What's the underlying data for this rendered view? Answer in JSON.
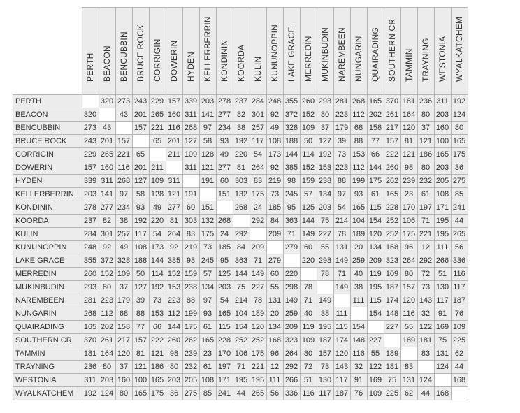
{
  "table": {
    "columns": [
      "PERTH",
      "BEACON",
      "BENCUBBIN",
      "BRUCE ROCK",
      "CORRIGIN",
      "DOWERIN",
      "HYDEN",
      "KELLERBERRIN",
      "KONDININ",
      "KOORDA",
      "KULIN",
      "KUNUNOPPIN",
      "LAKE GRACE",
      "MERREDIN",
      "MUKINBUDIN",
      "NAREMBEEN",
      "NUNGARIN",
      "QUAIRADING",
      "SOUTHERN CR",
      "TAMMIN",
      "TRAYNING",
      "WESTONIA",
      "WYALKATCHEM"
    ],
    "rows": [
      {
        "name": "PERTH",
        "values": [
          "",
          "320",
          "273",
          "243",
          "229",
          "157",
          "339",
          "203",
          "278",
          "237",
          "284",
          "248",
          "355",
          "260",
          "293",
          "281",
          "268",
          "165",
          "370",
          "181",
          "236",
          "311",
          "192"
        ]
      },
      {
        "name": "BEACON",
        "values": [
          "320",
          "",
          "43",
          "201",
          "265",
          "160",
          "311",
          "141",
          "277",
          "82",
          "301",
          "92",
          "372",
          "152",
          "80",
          "223",
          "112",
          "202",
          "261",
          "164",
          "80",
          "203",
          "124"
        ]
      },
      {
        "name": "BENCUBBIN",
        "values": [
          "273",
          "43",
          "",
          "157",
          "221",
          "116",
          "268",
          "97",
          "234",
          "38",
          "257",
          "49",
          "328",
          "109",
          "37",
          "179",
          "68",
          "158",
          "217",
          "120",
          "37",
          "160",
          "80"
        ]
      },
      {
        "name": "BRUCE ROCK",
        "values": [
          "243",
          "201",
          "157",
          "",
          "65",
          "201",
          "127",
          "58",
          "93",
          "192",
          "117",
          "108",
          "188",
          "50",
          "127",
          "39",
          "88",
          "77",
          "157",
          "81",
          "121",
          "100",
          "165"
        ]
      },
      {
        "name": "CORRIGIN",
        "values": [
          "229",
          "265",
          "221",
          "65",
          "",
          "211",
          "109",
          "128",
          "49",
          "220",
          "54",
          "173",
          "144",
          "114",
          "192",
          "73",
          "153",
          "66",
          "222",
          "121",
          "186",
          "165",
          "175"
        ]
      },
      {
        "name": "DOWERIN",
        "values": [
          "157",
          "160",
          "116",
          "201",
          "211",
          "",
          "311",
          "121",
          "277",
          "81",
          "264",
          "92",
          "385",
          "152",
          "153",
          "223",
          "112",
          "144",
          "260",
          "98",
          "80",
          "203",
          "36"
        ]
      },
      {
        "name": "HYDEN",
        "values": [
          "339",
          "311",
          "268",
          "127",
          "109",
          "311",
          "",
          "191",
          "60",
          "303",
          "83",
          "219",
          "98",
          "159",
          "238",
          "88",
          "199",
          "175",
          "262",
          "239",
          "232",
          "205",
          "275"
        ]
      },
      {
        "name": "KELLERBERRIN",
        "values": [
          "203",
          "141",
          "97",
          "58",
          "128",
          "121",
          "191",
          "",
          "151",
          "132",
          "175",
          "73",
          "245",
          "57",
          "134",
          "97",
          "93",
          "61",
          "165",
          "23",
          "61",
          "108",
          "85"
        ]
      },
      {
        "name": "KONDININ",
        "values": [
          "278",
          "277",
          "234",
          "93",
          "49",
          "277",
          "60",
          "151",
          "",
          "268",
          "24",
          "185",
          "95",
          "125",
          "203",
          "54",
          "165",
          "115",
          "228",
          "170",
          "197",
          "171",
          "241"
        ]
      },
      {
        "name": "KOORDA",
        "values": [
          "237",
          "82",
          "38",
          "192",
          "220",
          "81",
          "303",
          "132",
          "268",
          "",
          "292",
          "84",
          "363",
          "144",
          "75",
          "214",
          "104",
          "154",
          "252",
          "106",
          "71",
          "195",
          "44"
        ]
      },
      {
        "name": "KULIN",
        "values": [
          "284",
          "301",
          "257",
          "117",
          "54",
          "264",
          "83",
          "175",
          "24",
          "292",
          "",
          "209",
          "71",
          "149",
          "227",
          "78",
          "189",
          "120",
          "252",
          "175",
          "221",
          "195",
          "265"
        ]
      },
      {
        "name": "KUNUNOPPIN",
        "values": [
          "248",
          "92",
          "49",
          "108",
          "173",
          "92",
          "219",
          "73",
          "185",
          "84",
          "209",
          "",
          "279",
          "60",
          "55",
          "131",
          "20",
          "134",
          "168",
          "96",
          "12",
          "111",
          "56"
        ]
      },
      {
        "name": "LAKE GRACE",
        "values": [
          "355",
          "372",
          "328",
          "188",
          "144",
          "385",
          "98",
          "245",
          "95",
          "363",
          "71",
          "279",
          "",
          "220",
          "298",
          "149",
          "259",
          "209",
          "323",
          "264",
          "292",
          "266",
          "336"
        ]
      },
      {
        "name": "MERREDIN",
        "values": [
          "260",
          "152",
          "109",
          "50",
          "114",
          "152",
          "159",
          "57",
          "125",
          "144",
          "149",
          "60",
          "220",
          "",
          "78",
          "71",
          "40",
          "119",
          "109",
          "80",
          "72",
          "51",
          "116"
        ]
      },
      {
        "name": "MUKINBUDIN",
        "values": [
          "293",
          "80",
          "37",
          "127",
          "192",
          "153",
          "238",
          "134",
          "203",
          "75",
          "227",
          "55",
          "298",
          "78",
          "",
          "149",
          "38",
          "195",
          "187",
          "157",
          "73",
          "130",
          "117"
        ]
      },
      {
        "name": "NAREMBEEN",
        "values": [
          "281",
          "223",
          "179",
          "39",
          "73",
          "223",
          "88",
          "97",
          "54",
          "214",
          "78",
          "131",
          "149",
          "71",
          "149",
          "",
          "111",
          "115",
          "174",
          "120",
          "143",
          "117",
          "187"
        ]
      },
      {
        "name": "NUNGARIN",
        "values": [
          "268",
          "112",
          "68",
          "88",
          "153",
          "112",
          "199",
          "93",
          "165",
          "104",
          "189",
          "20",
          "259",
          "40",
          "38",
          "111",
          "",
          "154",
          "148",
          "116",
          "32",
          "91",
          "76"
        ]
      },
      {
        "name": "QUAIRADING",
        "values": [
          "165",
          "202",
          "158",
          "77",
          "66",
          "144",
          "175",
          "61",
          "115",
          "154",
          "120",
          "134",
          "209",
          "119",
          "195",
          "115",
          "154",
          "",
          "227",
          "55",
          "122",
          "169",
          "109"
        ]
      },
      {
        "name": "SOUTHERN CR",
        "values": [
          "370",
          "261",
          "217",
          "157",
          "222",
          "260",
          "262",
          "165",
          "228",
          "252",
          "252",
          "168",
          "323",
          "109",
          "187",
          "174",
          "148",
          "227",
          "",
          "189",
          "181",
          "75",
          "225"
        ]
      },
      {
        "name": "TAMMIN",
        "values": [
          "181",
          "164",
          "120",
          "81",
          "121",
          "98",
          "239",
          "23",
          "170",
          "106",
          "175",
          "96",
          "264",
          "80",
          "157",
          "120",
          "116",
          "55",
          "189",
          "",
          "83",
          "131",
          "62"
        ]
      },
      {
        "name": "TRAYNING",
        "values": [
          "236",
          "80",
          "37",
          "121",
          "186",
          "80",
          "232",
          "61",
          "197",
          "71",
          "221",
          "12",
          "292",
          "72",
          "73",
          "143",
          "32",
          "122",
          "181",
          "83",
          "",
          "124",
          "44"
        ]
      },
      {
        "name": "WESTONIA",
        "values": [
          "311",
          "203",
          "160",
          "100",
          "165",
          "203",
          "205",
          "108",
          "171",
          "195",
          "195",
          "111",
          "266",
          "51",
          "130",
          "117",
          "91",
          "169",
          "75",
          "131",
          "124",
          "",
          "168"
        ]
      },
      {
        "name": "WYALKATCHEM",
        "values": [
          "192",
          "124",
          "80",
          "165",
          "175",
          "36",
          "275",
          "85",
          "241",
          "44",
          "265",
          "56",
          "336",
          "116",
          "117",
          "187",
          "76",
          "109",
          "225",
          "62",
          "44",
          "168",
          ""
        ]
      }
    ]
  }
}
